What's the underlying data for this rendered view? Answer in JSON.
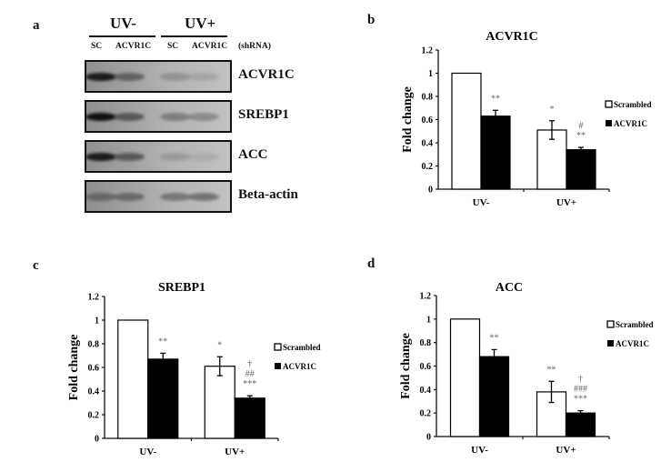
{
  "panel_a": {
    "label": "a",
    "groups": [
      "UV-",
      "UV+"
    ],
    "lanes": [
      "SC",
      "ACVR1C",
      "SC",
      "ACVR1C"
    ],
    "lane_suffix": "(shRNA)",
    "blots": [
      {
        "name": "ACVR1C",
        "intensities": [
          0.95,
          0.6,
          0.3,
          0.18
        ]
      },
      {
        "name": "SREBP1",
        "intensities": [
          1.0,
          0.65,
          0.45,
          0.38
        ]
      },
      {
        "name": "ACC",
        "intensities": [
          0.95,
          0.65,
          0.25,
          0.12
        ]
      },
      {
        "name": "Beta-actin",
        "intensities": [
          0.55,
          0.55,
          0.5,
          0.52
        ]
      }
    ]
  },
  "legend": {
    "scrambled": "Scrambled",
    "acvr1c": "ACVR1C"
  },
  "chart_data": [
    {
      "panel": "b",
      "type": "bar",
      "title": "ACVR1C",
      "ylabel": "Fold change",
      "xlabel": "",
      "ylim": [
        0,
        1.2
      ],
      "yticks": [
        "0",
        "0.2",
        "0.4",
        "0.6",
        "0.8",
        "1",
        "1.2"
      ],
      "categories": [
        "UV-",
        "UV+"
      ],
      "series": [
        {
          "name": "Scrambled",
          "values": [
            1.0,
            0.51
          ],
          "errors": [
            0,
            0.08
          ],
          "annotations": [
            "",
            "*"
          ]
        },
        {
          "name": "ACVR1C",
          "values": [
            0.63,
            0.34
          ],
          "errors": [
            0.05,
            0.02
          ],
          "annotations": [
            "**",
            "#\n**"
          ]
        }
      ],
      "legend_position": "right",
      "grid": false
    },
    {
      "panel": "c",
      "type": "bar",
      "title": "SREBP1",
      "ylabel": "Fold change",
      "xlabel": "",
      "ylim": [
        0,
        1.2
      ],
      "yticks": [
        "0",
        "0.2",
        "0.4",
        "0.6",
        "0.8",
        "1",
        "1.2"
      ],
      "categories": [
        "UV-",
        "UV+"
      ],
      "series": [
        {
          "name": "Scrambled",
          "values": [
            1.0,
            0.61
          ],
          "errors": [
            0,
            0.08
          ],
          "annotations": [
            "",
            "*"
          ]
        },
        {
          "name": "ACVR1C",
          "values": [
            0.67,
            0.34
          ],
          "errors": [
            0.05,
            0.02
          ],
          "annotations": [
            "**",
            "†\n##\n***"
          ]
        }
      ],
      "legend_position": "right",
      "grid": false
    },
    {
      "panel": "d",
      "type": "bar",
      "title": "ACC",
      "ylabel": "Fold change",
      "xlabel": "",
      "ylim": [
        0,
        1.2
      ],
      "yticks": [
        "0",
        "0.2",
        "0.4",
        "0.6",
        "0.8",
        "1",
        "1.2"
      ],
      "categories": [
        "UV-",
        "UV+"
      ],
      "series": [
        {
          "name": "Scrambled",
          "values": [
            1.0,
            0.38
          ],
          "errors": [
            0,
            0.09
          ],
          "annotations": [
            "",
            "**"
          ]
        },
        {
          "name": "ACVR1C",
          "values": [
            0.68,
            0.2
          ],
          "errors": [
            0.06,
            0.02
          ],
          "annotations": [
            "**",
            "†\n###\n***"
          ]
        }
      ],
      "legend_position": "right",
      "grid": false
    }
  ]
}
